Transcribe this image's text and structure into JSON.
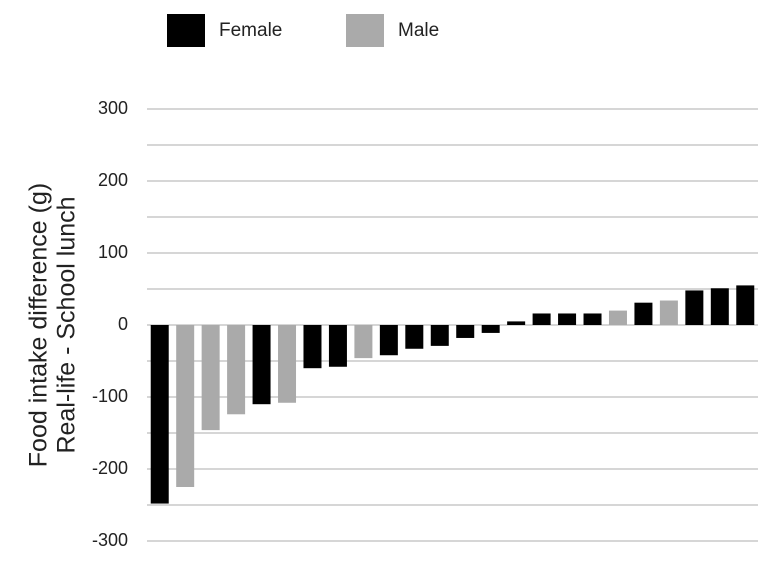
{
  "chart_data": {
    "type": "bar",
    "ylabel": [
      "Food intake difference (g)",
      "Real-life  -  School lunch"
    ],
    "categories": [
      null,
      null,
      null,
      null,
      null,
      null,
      null,
      null,
      null,
      null,
      null,
      null,
      null,
      null,
      null,
      null,
      null,
      null,
      null,
      null,
      null,
      null,
      null,
      null
    ],
    "series": [
      {
        "name": "Female",
        "color": "#000000",
        "values": [
          -248,
          null,
          null,
          null,
          -110,
          null,
          -60,
          -58,
          null,
          -42,
          -33,
          -29,
          -18,
          -11,
          5,
          16,
          16,
          16,
          null,
          31,
          null,
          48,
          51,
          55
        ]
      },
      {
        "name": "Male",
        "color": "#aaaaaa",
        "values": [
          null,
          -225,
          -146,
          -124,
          null,
          -108,
          null,
          null,
          -46,
          null,
          null,
          null,
          null,
          null,
          null,
          null,
          null,
          null,
          20,
          null,
          34,
          null,
          null,
          null
        ]
      }
    ],
    "ylim": [
      -300,
      300
    ],
    "yticks": [
      -300,
      -200,
      -100,
      0,
      100,
      200,
      300
    ],
    "minor_yticks": [
      -250,
      -150,
      -50,
      50,
      150,
      250
    ],
    "grid": true,
    "legend": "top"
  }
}
